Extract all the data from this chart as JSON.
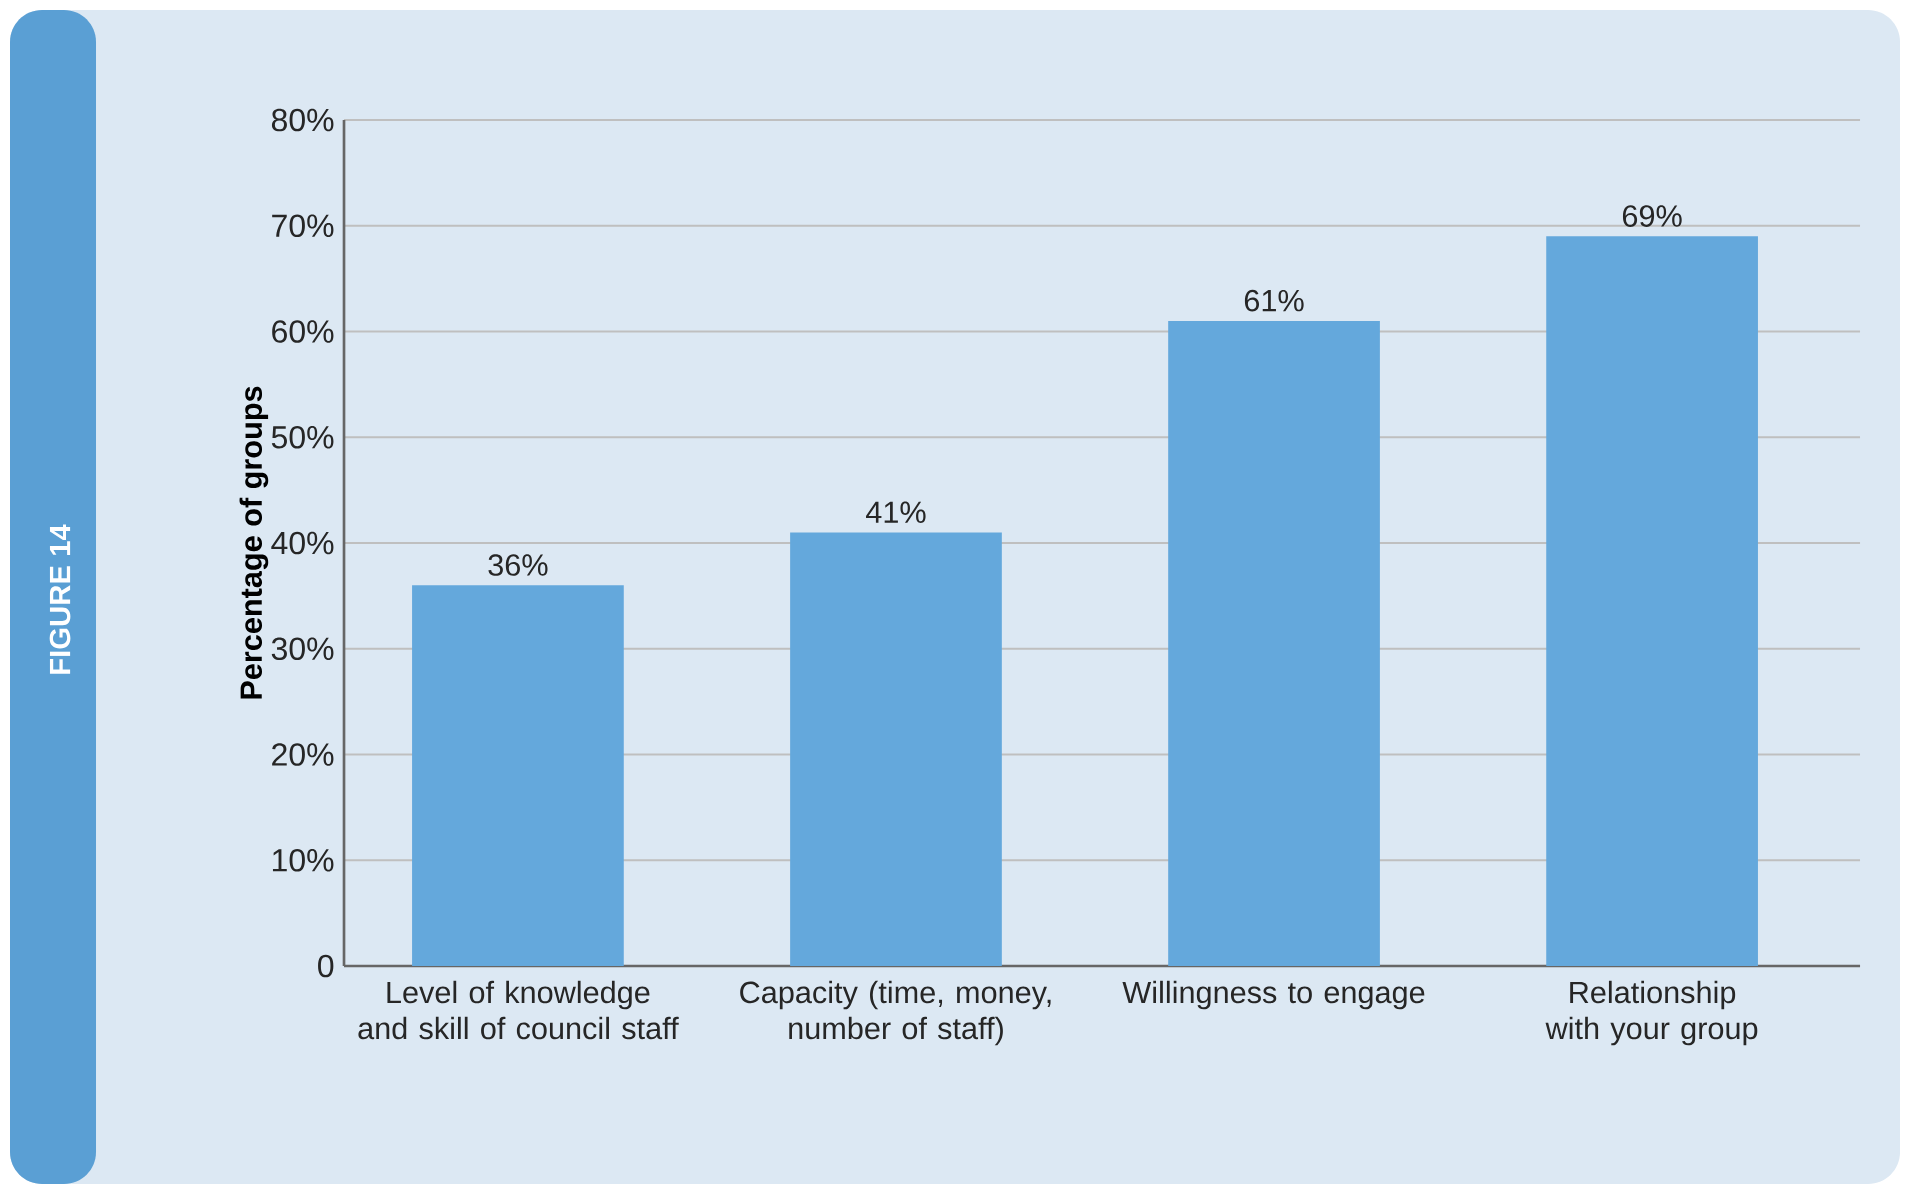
{
  "chart_data": {
    "type": "bar",
    "ylabel": "Percentage of groups",
    "categories": [
      "Level of knowledge and skill of council staff",
      "Capacity (time, money, number of staff)",
      "Willingness to engage",
      "Relationship with your group"
    ],
    "values": [
      36,
      41,
      61,
      69
    ],
    "value_labels": [
      "36%",
      "41%",
      "61%",
      "69%"
    ],
    "color": "#64a8dc",
    "ylim": [
      0,
      80
    ],
    "yticks": [
      0,
      {
        "value": 10,
        "label": "10%"
      },
      {
        "value": 20,
        "label": "20%"
      },
      {
        "value": 30,
        "label": "30%"
      },
      {
        "value": 40,
        "label": "40%"
      },
      {
        "value": 50,
        "label": "50%"
      },
      {
        "value": 60,
        "label": "60%"
      },
      {
        "value": 70,
        "label": "70%"
      },
      {
        "value": 80,
        "label": "80%"
      }
    ],
    "grid": "y",
    "annotations": [
      "FIGURE 14"
    ]
  }
}
